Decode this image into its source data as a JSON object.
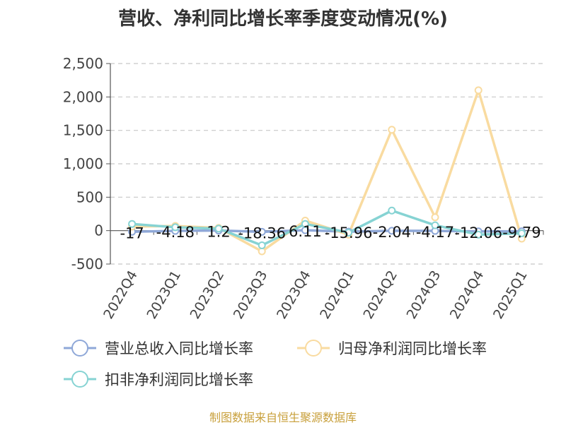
{
  "chart_data": {
    "type": "line",
    "title": "营收、净利同比增长率季度变动情况(%)",
    "source": "制图数据来自恒生聚源数据库",
    "categories": [
      "2022Q4",
      "2023Q1",
      "2023Q2",
      "2023Q3",
      "2023Q4",
      "2024Q1",
      "2024Q2",
      "2024Q3",
      "2024Q4",
      "2025Q1"
    ],
    "ylim": [
      -500,
      2500
    ],
    "yticks": [
      -500,
      0,
      500,
      1000,
      1500,
      2000,
      2500
    ],
    "ytick_labels": [
      "-500",
      "0",
      "500",
      "1,000",
      "1,500",
      "2,000",
      "2,500"
    ],
    "grid": true,
    "legend_position": "bottom",
    "series": [
      {
        "name": "营业总收入同比增长率",
        "color": "#8fa8d8",
        "values": [
          -17,
          -4.18,
          1.2,
          -18.36,
          6.11,
          -15.96,
          -2.04,
          -4.17,
          -12.06,
          -9.79
        ],
        "labels": [
          "-17",
          "-4.18",
          "1.2",
          "-18.36",
          "6.11",
          "-15.96",
          "-2.04",
          "-4.17",
          "-12.06",
          "-9.79"
        ]
      },
      {
        "name": "归母净利润同比增长率",
        "color": "#f9dba0",
        "values": [
          60,
          70,
          40,
          -310,
          150,
          -60,
          1510,
          200,
          2100,
          -120
        ]
      },
      {
        "name": "扣非净利润同比增长率",
        "color": "#86d3d3",
        "values": [
          100,
          50,
          30,
          -220,
          100,
          -30,
          300,
          80,
          -60,
          -40
        ]
      }
    ]
  }
}
